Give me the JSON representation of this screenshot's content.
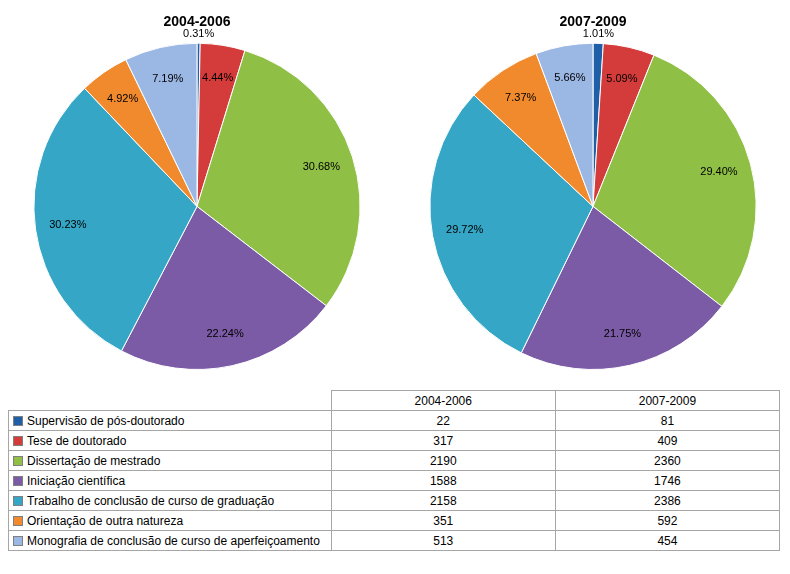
{
  "chart_data": [
    {
      "type": "pie",
      "title": "2004-2006",
      "categories": [
        "Supervisão de pós-doutorado",
        "Tese de doutorado",
        "Dissertação de mestrado",
        "Iniciação científica",
        "Trabalho de conclusão de curso de graduação",
        "Orientação de outra natureza",
        "Monografia de conclusão de curso de aperfeiçoamento"
      ],
      "values": [
        0.31,
        4.44,
        30.68,
        22.24,
        30.23,
        4.92,
        7.19
      ],
      "value_labels": [
        "0.31%",
        "4.44%",
        "30.68%",
        "22.24%",
        "30.23%",
        "4.92%",
        "7.19%"
      ],
      "colors": [
        "#1f5fa8",
        "#d43b3b",
        "#8fbf45",
        "#7b5ba6",
        "#35a6c6",
        "#f08a2c",
        "#9bb8e4"
      ],
      "data_labels": true
    },
    {
      "type": "pie",
      "title": "2007-2009",
      "categories": [
        "Supervisão de pós-doutorado",
        "Tese de doutorado",
        "Dissertação de mestrado",
        "Iniciação científica",
        "Trabalho de conclusão de curso de graduação",
        "Orientação de outra natureza",
        "Monografia de conclusão de curso de aperfeiçoamento"
      ],
      "values": [
        1.01,
        5.09,
        29.4,
        21.75,
        29.72,
        7.37,
        5.66
      ],
      "value_labels": [
        "1.01%",
        "5.09%",
        "29.40%",
        "21.75%",
        "29.72%",
        "7.37%",
        "5.66%"
      ],
      "colors": [
        "#1f5fa8",
        "#d43b3b",
        "#8fbf45",
        "#7b5ba6",
        "#35a6c6",
        "#f08a2c",
        "#9bb8e4"
      ],
      "data_labels": true
    }
  ],
  "table": {
    "columns": [
      "2004-2006",
      "2007-2009"
    ],
    "rows": [
      {
        "label": "Supervisão de pós-doutorado",
        "color": "#1f5fa8",
        "values": [
          22,
          81
        ]
      },
      {
        "label": "Tese de doutorado",
        "color": "#d43b3b",
        "values": [
          317,
          409
        ]
      },
      {
        "label": "Dissertação de mestrado",
        "color": "#8fbf45",
        "values": [
          2190,
          2360
        ]
      },
      {
        "label": "Iniciação científica",
        "color": "#7b5ba6",
        "values": [
          1588,
          1746
        ]
      },
      {
        "label": "Trabalho de conclusão de curso de graduação",
        "color": "#35a6c6",
        "values": [
          2158,
          2386
        ]
      },
      {
        "label": "Orientação de outra natureza",
        "color": "#f08a2c",
        "values": [
          351,
          592
        ]
      },
      {
        "label": "Monografia de conclusão de curso de aperfeiçoamento",
        "color": "#9bb8e4",
        "values": [
          513,
          454
        ]
      }
    ]
  }
}
